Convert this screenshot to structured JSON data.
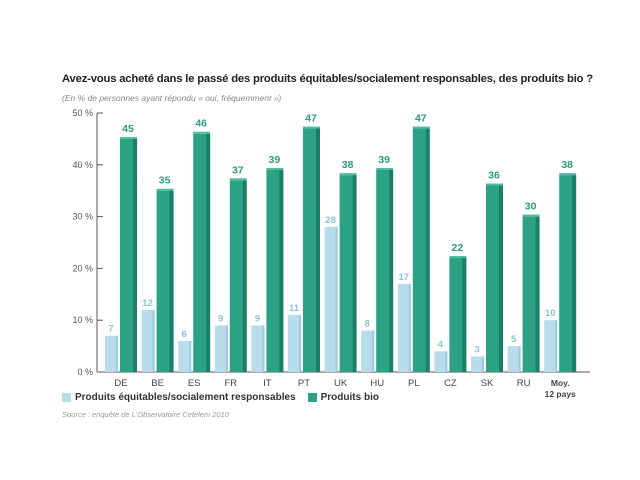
{
  "chart_data": {
    "type": "bar",
    "title": "Avez-vous acheté dans le passé des produits équitables/socialement responsables, des produits bio ?",
    "subtitle": "(En % de personnes ayant répondu « oui, fréquemment »)",
    "categories": [
      "DE",
      "BE",
      "ES",
      "FR",
      "IT",
      "PT",
      "UK",
      "HU",
      "PL",
      "CZ",
      "SK",
      "RU",
      "Moy.|12 pays"
    ],
    "series": [
      {
        "name": "Produits équitables/socialement responsables",
        "color": "#b8dcea",
        "label_color": "#8cc3dc",
        "values": [
          7,
          12,
          6,
          9,
          9,
          11,
          28,
          8,
          17,
          4,
          3,
          5,
          10
        ]
      },
      {
        "name": "Produits bio",
        "color": "#2aa283",
        "label_color": "#2a9d7c",
        "values": [
          45,
          35,
          46,
          37,
          39,
          47,
          38,
          39,
          47,
          22,
          36,
          30,
          38
        ]
      }
    ],
    "yticks": [
      "0 %",
      "10 %",
      "20 %",
      "30 %",
      "40 %",
      "50 %"
    ],
    "ylim": [
      0,
      50
    ],
    "xlabel": "",
    "ylabel": "",
    "legend_position": "bottom-left",
    "source": "Source : enquête de L'Observatoire Cetelem 2010"
  }
}
